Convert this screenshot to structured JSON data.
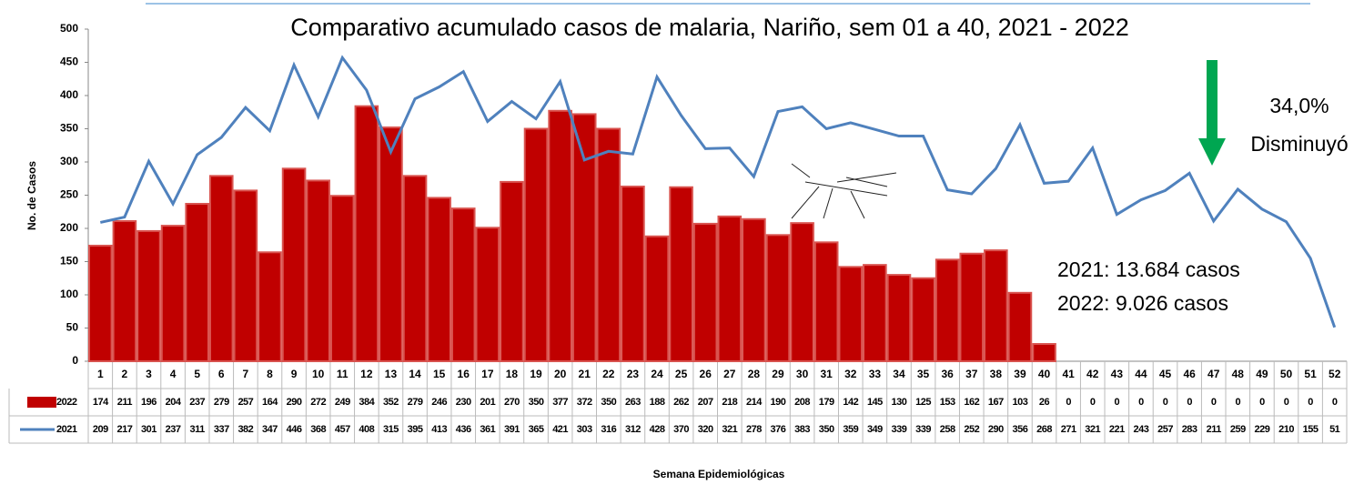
{
  "chart_data": {
    "type": "bar",
    "title": "Comparativo acumulado casos de malaria, Nariño, sem 01 a 40, 2021 - 2022",
    "y_label": "No. de Casos",
    "x_label": "Semana Epidemiológicas",
    "annotations": [
      "34,0%",
      "Disminuyó",
      "2021: 13.684 casos",
      "2022: 9.026 casos"
    ],
    "categories": [
      "1",
      "2",
      "3",
      "4",
      "5",
      "6",
      "7",
      "8",
      "9",
      "10",
      "11",
      "12",
      "13",
      "14",
      "15",
      "16",
      "17",
      "18",
      "19",
      "20",
      "21",
      "22",
      "23",
      "24",
      "25",
      "26",
      "27",
      "28",
      "29",
      "30",
      "31",
      "32",
      "33",
      "34",
      "35",
      "36",
      "37",
      "38",
      "39",
      "40",
      "41",
      "42",
      "43",
      "44",
      "45",
      "46",
      "47",
      "48",
      "49",
      "50",
      "51",
      "52"
    ],
    "series": [
      {
        "name": "2022",
        "type": "bar",
        "color": "#c00000",
        "values": [
          174,
          211,
          196,
          204,
          237,
          279,
          257,
          164,
          290,
          272,
          249,
          384,
          352,
          279,
          246,
          230,
          201,
          270,
          350,
          377,
          372,
          350,
          263,
          188,
          262,
          207,
          218,
          214,
          190,
          208,
          179,
          142,
          145,
          130,
          125,
          153,
          162,
          167,
          103,
          26,
          0,
          0,
          0,
          0,
          0,
          0,
          0,
          0,
          0,
          0,
          0,
          0
        ]
      },
      {
        "name": "2021",
        "type": "line",
        "color": "#4f81bd",
        "values": [
          209,
          217,
          301,
          237,
          311,
          337,
          382,
          347,
          446,
          368,
          457,
          408,
          315,
          395,
          413,
          436,
          361,
          391,
          365,
          421,
          303,
          316,
          312,
          428,
          370,
          320,
          321,
          278,
          376,
          383,
          350,
          359,
          349,
          339,
          339,
          258,
          252,
          290,
          356,
          268,
          271,
          321,
          221,
          243,
          257,
          283,
          211,
          259,
          229,
          210,
          155,
          51
        ]
      }
    ],
    "ylim": [
      0,
      500
    ],
    "yticks": [
      0,
      50,
      100,
      150,
      200,
      250,
      300,
      350,
      400,
      450,
      500
    ],
    "grid": false
  }
}
